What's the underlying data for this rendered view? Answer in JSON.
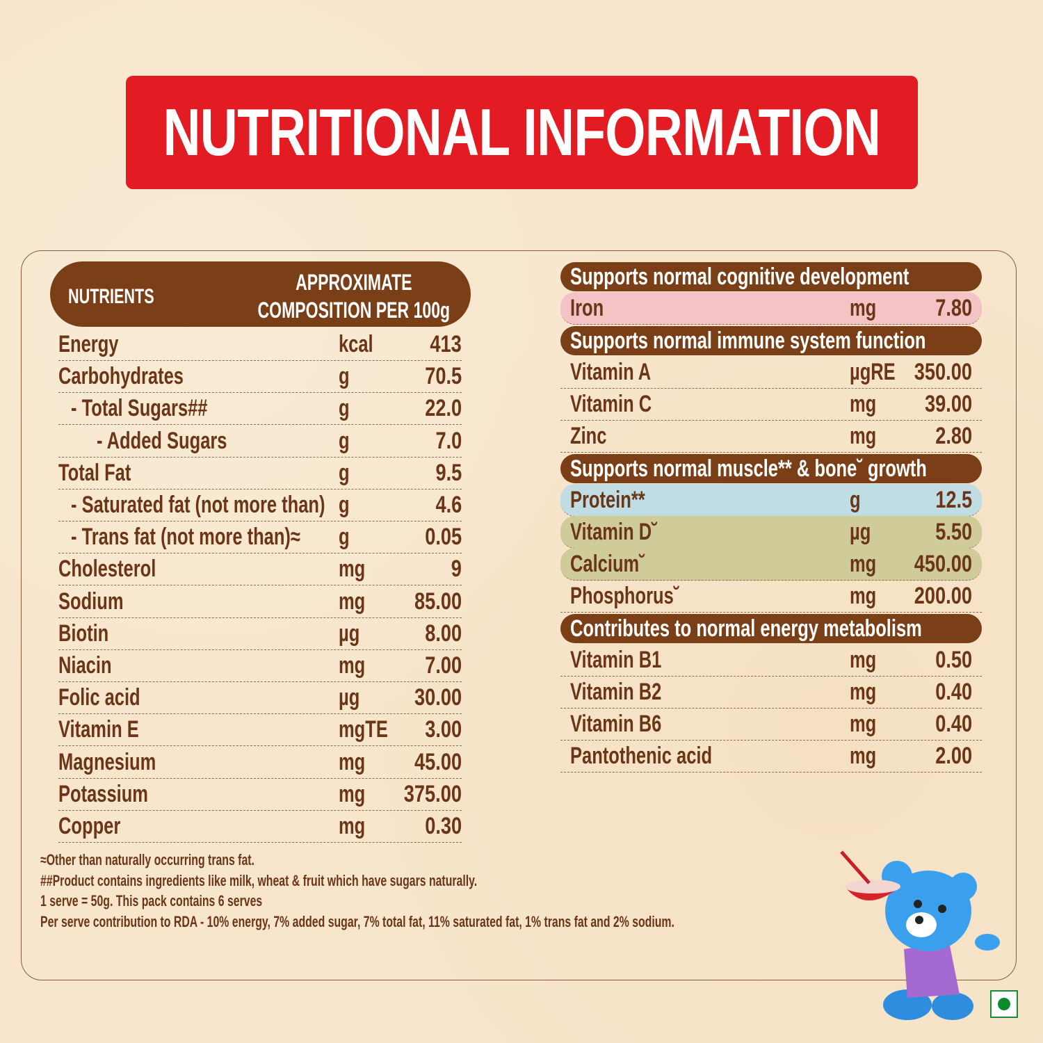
{
  "title": "NUTRITIONAL INFORMATION",
  "left_table": {
    "header_nutrients": "NUTRIENTS",
    "header_composition_line1": "APPROXIMATE",
    "header_composition_line2": "COMPOSITION PER 100g",
    "rows": [
      {
        "label": "Energy",
        "unit": "kcal",
        "value": "413",
        "indent": 0
      },
      {
        "label": "Carbohydrates",
        "unit": "g",
        "value": "70.5",
        "indent": 0
      },
      {
        "label": "- Total Sugars##",
        "unit": "g",
        "value": "22.0",
        "indent": 1
      },
      {
        "label": "- Added Sugars",
        "unit": "g",
        "value": "7.0",
        "indent": 2
      },
      {
        "label": "Total Fat",
        "unit": "g",
        "value": "9.5",
        "indent": 0
      },
      {
        "label": "- Saturated fat (not more than)",
        "unit": "g",
        "value": "4.6",
        "indent": 1
      },
      {
        "label": "- Trans fat (not more than)≈",
        "unit": "g",
        "value": "0.05",
        "indent": 1
      },
      {
        "label": "Cholesterol",
        "unit": "mg",
        "value": "9",
        "indent": 0
      },
      {
        "label": "Sodium",
        "unit": "mg",
        "value": "85.00",
        "indent": 0
      },
      {
        "label": "Biotin",
        "unit": "µg",
        "value": "8.00",
        "indent": 0
      },
      {
        "label": "Niacin",
        "unit": "mg",
        "value": "7.00",
        "indent": 0
      },
      {
        "label": "Folic acid",
        "unit": "µg",
        "value": "30.00",
        "indent": 0
      },
      {
        "label": "Vitamin E",
        "unit": "mgTE",
        "value": "3.00",
        "indent": 0
      },
      {
        "label": "Magnesium",
        "unit": "mg",
        "value": "45.00",
        "indent": 0
      },
      {
        "label": "Potassium",
        "unit": "mg",
        "value": "375.00",
        "indent": 0
      },
      {
        "label": "Copper",
        "unit": "mg",
        "value": "0.30",
        "indent": 0
      }
    ]
  },
  "right_table": {
    "sections": [
      {
        "heading": "Supports normal cognitive development",
        "rows": [
          {
            "label": "Iron",
            "unit": "mg",
            "value": "7.80",
            "highlight": "#f4c3c6"
          }
        ]
      },
      {
        "heading": "Supports normal immune system function",
        "rows": [
          {
            "label": "Vitamin A",
            "unit": "µgRE",
            "value": "350.00"
          },
          {
            "label": "Vitamin C",
            "unit": "mg",
            "value": "39.00"
          },
          {
            "label": "Zinc",
            "unit": "mg",
            "value": "2.80"
          }
        ]
      },
      {
        "heading": "Supports normal muscle** & bone˘ growth",
        "rows": [
          {
            "label": "Protein**",
            "unit": "g",
            "value": "12.5",
            "highlight": "#bfdde3"
          },
          {
            "label": "Vitamin D˘",
            "unit": "µg",
            "value": "5.50",
            "highlight": "#cfcc9a"
          },
          {
            "label": "Calcium˘",
            "unit": "mg",
            "value": "450.00",
            "highlight": "#cfcc9a"
          },
          {
            "label": "Phosphorus˘",
            "unit": "mg",
            "value": "200.00"
          }
        ]
      },
      {
        "heading": "Contributes to normal energy metabolism",
        "rows": [
          {
            "label": "Vitamin B1",
            "unit": "mg",
            "value": "0.50"
          },
          {
            "label": "Vitamin B2",
            "unit": "mg",
            "value": "0.40"
          },
          {
            "label": "Vitamin B6",
            "unit": "mg",
            "value": "0.40"
          },
          {
            "label": "Pantothenic acid",
            "unit": "mg",
            "value": "2.00"
          }
        ]
      }
    ]
  },
  "footnotes": [
    "≈Other than naturally occurring trans fat.",
    "##Product contains ingredients like milk, wheat & fruit which have sugars naturally.",
    "1 serve = 50g. This pack contains 6 serves",
    "Per serve contribution to RDA - 10% energy, 7% added sugar, 7% total fat,  11% saturated fat, 1% trans fat and 2% sodium."
  ],
  "colors": {
    "title_bg": "#e31b23",
    "header_bg": "#7a3f17",
    "text": "#6b3517",
    "veg_mark": "#0c8a2e"
  },
  "icons": {
    "mascot": "blue-bear-with-bowl",
    "veg": "vegetarian-mark"
  }
}
